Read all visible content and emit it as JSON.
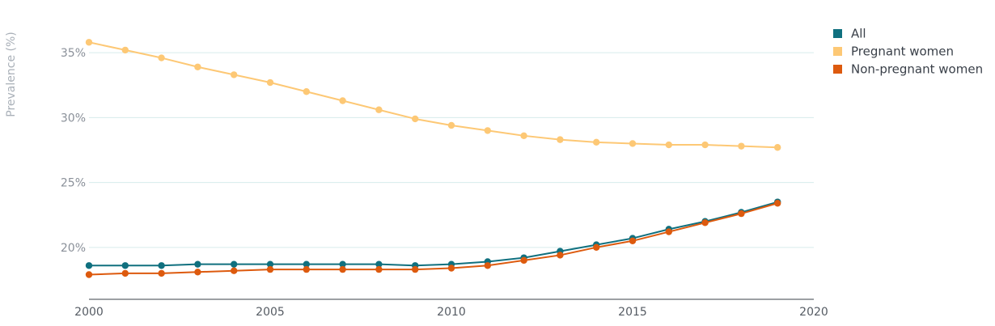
{
  "chart_data": {
    "type": "line",
    "title": "",
    "xlabel": "",
    "ylabel": "Prevalence (%)",
    "xlim": [
      2000,
      2020
    ],
    "ylim": [
      16,
      37.5
    ],
    "x_ticks": [
      "2000",
      "2005",
      "2010",
      "2015",
      "2020"
    ],
    "y_ticks": [
      "20%",
      "25%",
      "30%",
      "35%"
    ],
    "grid": "horizontal",
    "legend_position": "top-right",
    "x": [
      2000,
      2001,
      2002,
      2003,
      2004,
      2005,
      2006,
      2007,
      2008,
      2009,
      2010,
      2011,
      2012,
      2013,
      2014,
      2015,
      2016,
      2017,
      2018,
      2019
    ],
    "series": [
      {
        "name": "All",
        "color": "#10707f",
        "values": [
          18.6,
          18.6,
          18.6,
          18.7,
          18.7,
          18.7,
          18.7,
          18.7,
          18.7,
          18.6,
          18.7,
          18.9,
          19.2,
          19.7,
          20.2,
          20.7,
          21.4,
          22.0,
          22.7,
          23.5
        ]
      },
      {
        "name": "Pregnant women",
        "color": "#fdc875",
        "values": [
          35.8,
          35.2,
          34.6,
          33.9,
          33.3,
          32.7,
          32.0,
          31.3,
          30.6,
          29.9,
          29.4,
          29.0,
          28.6,
          28.3,
          28.1,
          28.0,
          27.9,
          27.9,
          27.8,
          27.7
        ]
      },
      {
        "name": "Non-pregnant women",
        "color": "#dd5a0e",
        "values": [
          17.9,
          18.0,
          18.0,
          18.1,
          18.2,
          18.3,
          18.3,
          18.3,
          18.3,
          18.3,
          18.4,
          18.6,
          19.0,
          19.4,
          20.0,
          20.5,
          21.2,
          21.9,
          22.6,
          23.4
        ]
      }
    ]
  }
}
